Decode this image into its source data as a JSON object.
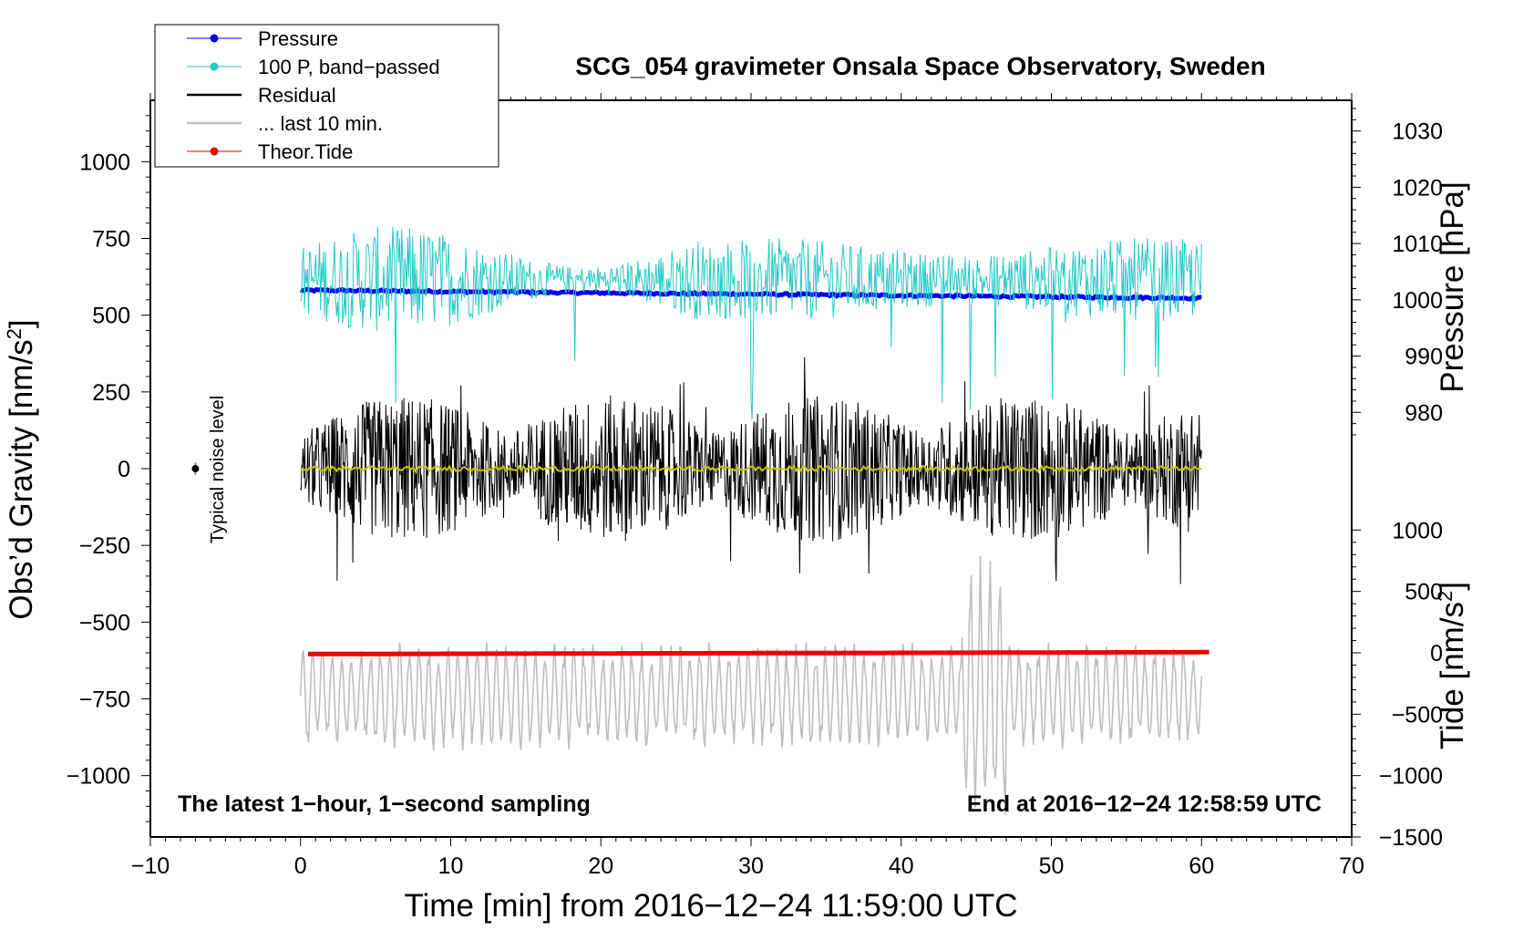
{
  "chart_data": {
    "type": "line",
    "title": "SCG_054 gravimeter Onsala Space Observatory, Sweden",
    "xlabel": "Time [min] from 2016−12−24 11:59:00 UTC",
    "ylabel": "Obs’d Gravity [nm/s²]",
    "ylabel_parts": {
      "main": "Obs’d Gravity [nm/s",
      "sup": "2",
      "end": "]"
    },
    "xlim": [
      -10,
      70
    ],
    "ylim": [
      -1200,
      1200
    ],
    "x_ticks": [
      -10,
      0,
      10,
      20,
      30,
      40,
      50,
      60,
      70
    ],
    "x_tick_labels": [
      "−10",
      "0",
      "10",
      "20",
      "30",
      "40",
      "50",
      "60",
      "70"
    ],
    "y_ticks": [
      -1000,
      -750,
      -500,
      -250,
      0,
      250,
      500,
      750,
      1000
    ],
    "y_tick_labels": [
      "−1000",
      "−750",
      "−500",
      "−250",
      "0",
      "250",
      "500",
      "750",
      "1000"
    ],
    "right_axes": [
      {
        "name": "pressure",
        "label": "Pressure [hPa]",
        "ticks": [
          980,
          990,
          1000,
          1010,
          1020,
          1030
        ],
        "tick_labels": [
          "980",
          "990",
          "1000",
          "1010",
          "1020",
          "1030"
        ],
        "mapping": {
          "value_a": 1000,
          "gravity_a": 550,
          "value_b": 1030,
          "gravity_b": 1100
        }
      },
      {
        "name": "tide",
        "label_parts": {
          "main": "Tide [nm/s",
          "sup": "2",
          "end": "]"
        },
        "ticks": [
          -1500,
          -1000,
          -500,
          0,
          500,
          1000
        ],
        "tick_labels": [
          "−1500",
          "−1000",
          "−500",
          "0",
          "500",
          "1000"
        ],
        "mapping": {
          "value_a": 0,
          "gravity_a": -600,
          "value_b": 1000,
          "gravity_b": -200
        }
      }
    ],
    "annotations": {
      "bottom_left": "The latest 1−hour, 1−second sampling",
      "bottom_right": "End at 2016−12−24 12:58:59 UTC",
      "noise_label": "Typical noise level",
      "noise_marker": {
        "x": -7,
        "y": 0,
        "err": 20
      }
    },
    "legend": {
      "position": "top-left",
      "entries": [
        {
          "label": "Pressure",
          "color": "#0000ee",
          "marker": true
        },
        {
          "label": "100 P, band−passed",
          "color": "#27c8c8",
          "marker": true
        },
        {
          "label": "Residual",
          "color": "#000000",
          "marker": false
        },
        {
          "label": "... last 10 min.",
          "color": "#bfbfbf",
          "marker": false
        },
        {
          "label": "Theor.Tide",
          "color": "#ee0000",
          "marker": true
        }
      ]
    },
    "series": [
      {
        "name": "Pressure",
        "axis": "pressure",
        "color": "#0000ee",
        "x_range": [
          0,
          60
        ],
        "start": 1001.7,
        "end": 1000.3
      },
      {
        "name": "100 P, band−passed",
        "axis": "gravity",
        "color": "#27c8c8",
        "x_range": [
          0,
          60
        ],
        "center": 615,
        "amplitude": 110
      },
      {
        "name": "Residual",
        "axis": "gravity",
        "color": "#000000",
        "x_range": [
          0,
          60
        ],
        "center": 0,
        "amplitude": 160
      },
      {
        "name": "Residual (smoothed)",
        "axis": "gravity",
        "color": "#c8c800",
        "x_range": [
          0,
          60
        ],
        "center": 0,
        "amplitude": 8
      },
      {
        "name": "... last 10 min.",
        "axis": "tide",
        "color": "#bfbfbf",
        "x_range": [
          0,
          60
        ],
        "center": -350,
        "amplitude": 450
      },
      {
        "name": "Theor.Tide",
        "axis": "tide",
        "color": "#ee0000",
        "x_range": [
          0.5,
          60.5
        ],
        "start": -10,
        "end": 5
      }
    ]
  }
}
